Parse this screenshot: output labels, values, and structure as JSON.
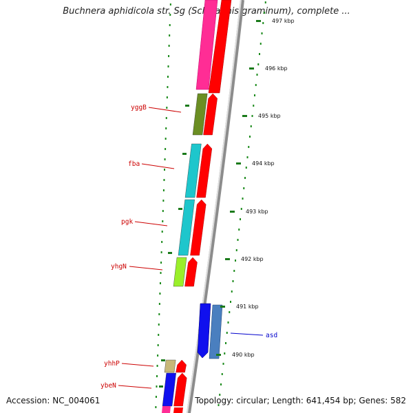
{
  "title": "Buchnera aphidicola str. Sg (Schizaphis graminum), complete ...",
  "footer": {
    "accession": "Accession: NC_004061",
    "summary": "Topology: circular; Length: 641,454 bp; Genes: 582"
  },
  "scale_ticks": [
    "497 kbp",
    "496 kbp",
    "495 kbp",
    "494 kbp",
    "493 kbp",
    "492 kbp",
    "491 kbp",
    "490 kbp"
  ],
  "genes": [
    {
      "name": "yggB",
      "strand": "+",
      "color": "#6b8e23"
    },
    {
      "name": "fba",
      "strand": "+",
      "color": "#1ec6cc"
    },
    {
      "name": "pgk",
      "strand": "+",
      "color": "#1ec6cc"
    },
    {
      "name": "yhgN",
      "strand": "+",
      "color": "#9aef2a"
    },
    {
      "name": "asd",
      "strand": "-",
      "color": "#1010ee"
    },
    {
      "name": "yhhP",
      "strand": "+",
      "color": "#c8b878"
    },
    {
      "name": "ybeN",
      "strand": "+",
      "color": "#1010ee"
    }
  ],
  "colors": {
    "forward_label": "#cc0000",
    "reverse_label": "#0000cc",
    "cds_arrow": "#ff0000",
    "tick_green": "#1a7a1a",
    "backbone": "#888888"
  }
}
